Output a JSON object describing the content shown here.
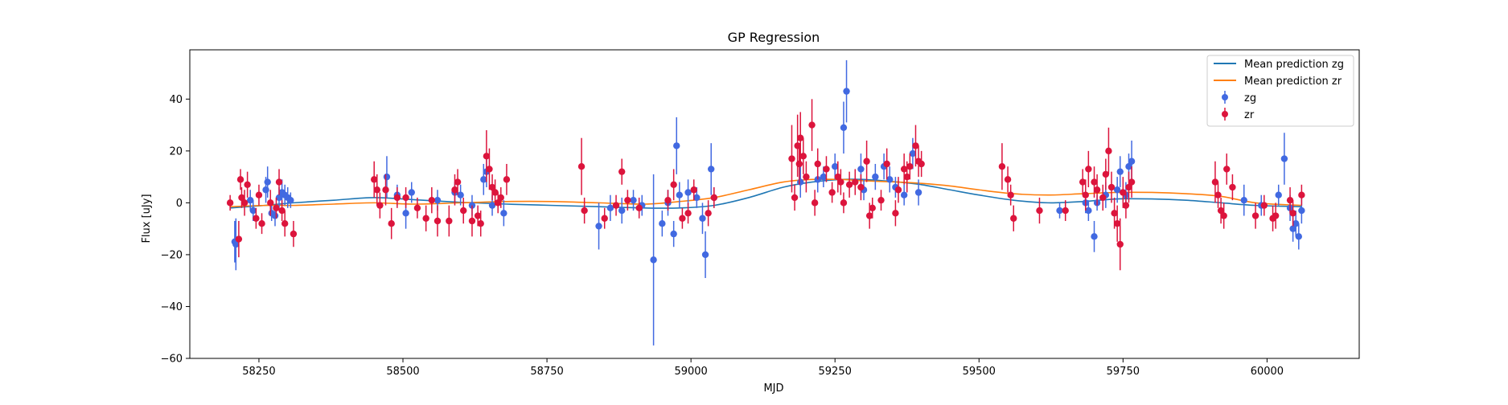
{
  "chart_data": {
    "type": "scatter",
    "title": "GP Regression",
    "xlabel": "MJD",
    "ylabel": "Flux [uJy]",
    "xlim": [
      58130,
      60160
    ],
    "ylim": [
      -60,
      59
    ],
    "x_ticks": [
      58250,
      58500,
      58750,
      59000,
      59250,
      59500,
      59750,
      60000
    ],
    "y_ticks": [
      -60,
      -40,
      -20,
      0,
      20,
      40
    ],
    "grid": false,
    "legend_position": "top-right",
    "lines": [
      {
        "name": "Mean prediction zg",
        "color": "#1f77b4",
        "x": [
          58200,
          58260,
          58310,
          58380,
          58450,
          58520,
          58600,
          58680,
          58760,
          58840,
          58920,
          58980,
          59040,
          59100,
          59160,
          59210,
          59260,
          59300,
          59360,
          59400,
          59450,
          59500,
          59560,
          59620,
          59680,
          59740,
          59800,
          59860,
          59920,
          59980,
          60060
        ],
        "y": [
          -2,
          -1,
          0,
          1,
          2,
          1.2,
          0.2,
          -0.5,
          -1,
          -1.5,
          -2,
          -2,
          -1,
          2,
          6,
          8,
          9,
          9,
          8,
          7,
          5,
          3,
          1,
          0,
          0.5,
          1.5,
          1.5,
          1,
          0,
          -1,
          -1.5
        ]
      },
      {
        "name": "Mean prediction zr",
        "color": "#ff7f0e",
        "x": [
          58200,
          58260,
          58310,
          58380,
          58450,
          58520,
          58600,
          58680,
          58760,
          58840,
          58920,
          58980,
          59040,
          59100,
          59160,
          59210,
          59260,
          59300,
          59360,
          59400,
          59450,
          59500,
          59560,
          59620,
          59680,
          59740,
          59800,
          59860,
          59920,
          59980,
          60060
        ],
        "y": [
          -1.5,
          -1,
          -1,
          -0.5,
          0,
          -0.5,
          0,
          0.5,
          0.5,
          0,
          -0.5,
          0.5,
          2,
          5,
          8,
          9,
          9,
          8.5,
          8,
          7.5,
          6.5,
          5,
          3.5,
          3,
          3.5,
          4,
          4,
          3.5,
          2.5,
          0,
          -1
        ]
      }
    ],
    "series": [
      {
        "name": "zg",
        "color": "#4169e1",
        "points": [
          [
            58208,
            -15,
            8
          ],
          [
            58210,
            -16,
            10
          ],
          [
            58235,
            1,
            4
          ],
          [
            58240,
            -3,
            4
          ],
          [
            58262,
            5,
            5
          ],
          [
            58265,
            8,
            6
          ],
          [
            58272,
            -4,
            3
          ],
          [
            58278,
            -5,
            4
          ],
          [
            58285,
            2,
            4
          ],
          [
            58290,
            4,
            5
          ],
          [
            58295,
            3,
            4
          ],
          [
            58300,
            2,
            4
          ],
          [
            58305,
            1,
            3
          ],
          [
            58472,
            10,
            8
          ],
          [
            58490,
            3,
            4
          ],
          [
            58505,
            -4,
            6
          ],
          [
            58515,
            4,
            4
          ],
          [
            58560,
            1,
            4
          ],
          [
            58590,
            4,
            4
          ],
          [
            58600,
            3,
            4
          ],
          [
            58620,
            -1,
            4
          ],
          [
            58640,
            9,
            6
          ],
          [
            58645,
            12,
            6
          ],
          [
            58655,
            -1,
            4
          ],
          [
            58675,
            -4,
            5
          ],
          [
            58840,
            -9,
            9
          ],
          [
            58860,
            -2,
            5
          ],
          [
            58880,
            -3,
            5
          ],
          [
            58900,
            1,
            4
          ],
          [
            58915,
            -1,
            4
          ],
          [
            58935,
            -22,
            33
          ],
          [
            58950,
            -8,
            5
          ],
          [
            58960,
            0,
            5
          ],
          [
            58970,
            -12,
            5
          ],
          [
            58975,
            22,
            11
          ],
          [
            58980,
            3,
            5
          ],
          [
            58995,
            4,
            5
          ],
          [
            59010,
            2,
            4
          ],
          [
            59020,
            -6,
            6
          ],
          [
            59025,
            -20,
            9
          ],
          [
            59035,
            13,
            10
          ],
          [
            59040,
            2,
            4
          ],
          [
            59190,
            8,
            6
          ],
          [
            59220,
            9,
            5
          ],
          [
            59230,
            10,
            4
          ],
          [
            59250,
            14,
            5
          ],
          [
            59265,
            29,
            10
          ],
          [
            59270,
            43,
            12
          ],
          [
            59295,
            13,
            6
          ],
          [
            59300,
            5,
            4
          ],
          [
            59320,
            10,
            5
          ],
          [
            59335,
            14,
            5
          ],
          [
            59345,
            9,
            5
          ],
          [
            59355,
            6,
            4
          ],
          [
            59370,
            3,
            4
          ],
          [
            59385,
            19,
            6
          ],
          [
            59395,
            4,
            5
          ],
          [
            59640,
            -3,
            3
          ],
          [
            59685,
            0,
            4
          ],
          [
            59690,
            -3,
            4
          ],
          [
            59700,
            -13,
            6
          ],
          [
            59705,
            0,
            3
          ],
          [
            59720,
            3,
            5
          ],
          [
            59740,
            5,
            5
          ],
          [
            59745,
            12,
            6
          ],
          [
            59755,
            3,
            5
          ],
          [
            59760,
            14,
            5
          ],
          [
            59765,
            16,
            8
          ],
          [
            59960,
            1,
            6
          ],
          [
            59990,
            -1,
            4
          ],
          [
            60020,
            3,
            4
          ],
          [
            60030,
            17,
            10
          ],
          [
            60040,
            -2,
            5
          ],
          [
            60045,
            -10,
            5
          ],
          [
            60050,
            -8,
            5
          ],
          [
            60055,
            -13,
            5
          ],
          [
            60060,
            -3,
            5
          ]
        ]
      },
      {
        "name": "zr",
        "color": "#dc143c",
        "points": [
          [
            58200,
            0,
            3
          ],
          [
            58215,
            -14,
            7
          ],
          [
            58218,
            9,
            4
          ],
          [
            58220,
            2,
            4
          ],
          [
            58225,
            0,
            5
          ],
          [
            58230,
            7,
            5
          ],
          [
            58245,
            -6,
            4
          ],
          [
            58250,
            3,
            4
          ],
          [
            58255,
            -8,
            4
          ],
          [
            58270,
            0,
            5
          ],
          [
            58280,
            -2,
            4
          ],
          [
            58285,
            8,
            5
          ],
          [
            58290,
            -3,
            4
          ],
          [
            58295,
            -8,
            5
          ],
          [
            58310,
            -12,
            5
          ],
          [
            58450,
            9,
            7
          ],
          [
            58455,
            5,
            6
          ],
          [
            58460,
            -1,
            5
          ],
          [
            58470,
            5,
            6
          ],
          [
            58480,
            -8,
            6
          ],
          [
            58490,
            2,
            4
          ],
          [
            58505,
            2,
            4
          ],
          [
            58525,
            -2,
            4
          ],
          [
            58540,
            -6,
            5
          ],
          [
            58550,
            1,
            5
          ],
          [
            58560,
            -7,
            6
          ],
          [
            58580,
            -7,
            6
          ],
          [
            58590,
            5,
            6
          ],
          [
            58595,
            8,
            5
          ],
          [
            58605,
            -3,
            5
          ],
          [
            58620,
            -7,
            6
          ],
          [
            58630,
            -5,
            4
          ],
          [
            58635,
            -8,
            5
          ],
          [
            58645,
            18,
            10
          ],
          [
            58650,
            13,
            8
          ],
          [
            58655,
            6,
            5
          ],
          [
            58660,
            4,
            5
          ],
          [
            58665,
            0,
            4
          ],
          [
            58670,
            2,
            4
          ],
          [
            58680,
            9,
            6
          ],
          [
            58810,
            14,
            11
          ],
          [
            58815,
            -3,
            5
          ],
          [
            58850,
            -6,
            4
          ],
          [
            58870,
            -1,
            4
          ],
          [
            58880,
            12,
            5
          ],
          [
            58890,
            1,
            4
          ],
          [
            58910,
            -2,
            4
          ],
          [
            58960,
            1,
            4
          ],
          [
            58970,
            7,
            6
          ],
          [
            58985,
            -6,
            4
          ],
          [
            58995,
            -4,
            4
          ],
          [
            59005,
            5,
            4
          ],
          [
            59030,
            -4,
            5
          ],
          [
            59040,
            2,
            4
          ],
          [
            59175,
            17,
            13
          ],
          [
            59180,
            2,
            5
          ],
          [
            59185,
            22,
            12
          ],
          [
            59188,
            15,
            8
          ],
          [
            59190,
            25,
            10
          ],
          [
            59195,
            18,
            7
          ],
          [
            59200,
            10,
            6
          ],
          [
            59210,
            30,
            10
          ],
          [
            59215,
            0,
            5
          ],
          [
            59220,
            15,
            6
          ],
          [
            59235,
            13,
            5
          ],
          [
            59245,
            4,
            4
          ],
          [
            59255,
            10,
            6
          ],
          [
            59260,
            8,
            5
          ],
          [
            59265,
            0,
            4
          ],
          [
            59275,
            7,
            5
          ],
          [
            59285,
            8,
            5
          ],
          [
            59295,
            6,
            5
          ],
          [
            59305,
            16,
            8
          ],
          [
            59310,
            -5,
            5
          ],
          [
            59315,
            -2,
            4
          ],
          [
            59330,
            1,
            4
          ],
          [
            59340,
            15,
            6
          ],
          [
            59355,
            -4,
            5
          ],
          [
            59360,
            5,
            5
          ],
          [
            59370,
            13,
            6
          ],
          [
            59375,
            10,
            6
          ],
          [
            59380,
            14,
            5
          ],
          [
            59390,
            22,
            8
          ],
          [
            59395,
            16,
            6
          ],
          [
            59400,
            15,
            5
          ],
          [
            59540,
            14,
            9
          ],
          [
            59550,
            9,
            5
          ],
          [
            59555,
            3,
            4
          ],
          [
            59560,
            -6,
            5
          ],
          [
            59605,
            -3,
            5
          ],
          [
            59650,
            -3,
            4
          ],
          [
            59680,
            8,
            5
          ],
          [
            59685,
            3,
            6
          ],
          [
            59690,
            13,
            7
          ],
          [
            59700,
            8,
            6
          ],
          [
            59705,
            5,
            6
          ],
          [
            59715,
            2,
            5
          ],
          [
            59720,
            11,
            6
          ],
          [
            59725,
            20,
            9
          ],
          [
            59730,
            6,
            6
          ],
          [
            59735,
            -4,
            6
          ],
          [
            59740,
            -8,
            7
          ],
          [
            59745,
            -16,
            10
          ],
          [
            59750,
            4,
            6
          ],
          [
            59755,
            -1,
            5
          ],
          [
            59760,
            6,
            6
          ],
          [
            59765,
            8,
            6
          ],
          [
            59910,
            8,
            8
          ],
          [
            59915,
            3,
            5
          ],
          [
            59920,
            -3,
            5
          ],
          [
            59925,
            -5,
            5
          ],
          [
            59930,
            13,
            6
          ],
          [
            59940,
            6,
            5
          ],
          [
            59980,
            -5,
            5
          ],
          [
            59995,
            -1,
            4
          ],
          [
            60010,
            -6,
            5
          ],
          [
            60015,
            -5,
            5
          ],
          [
            60040,
            1,
            5
          ],
          [
            60045,
            -4,
            5
          ],
          [
            60060,
            3,
            4
          ]
        ]
      }
    ]
  }
}
